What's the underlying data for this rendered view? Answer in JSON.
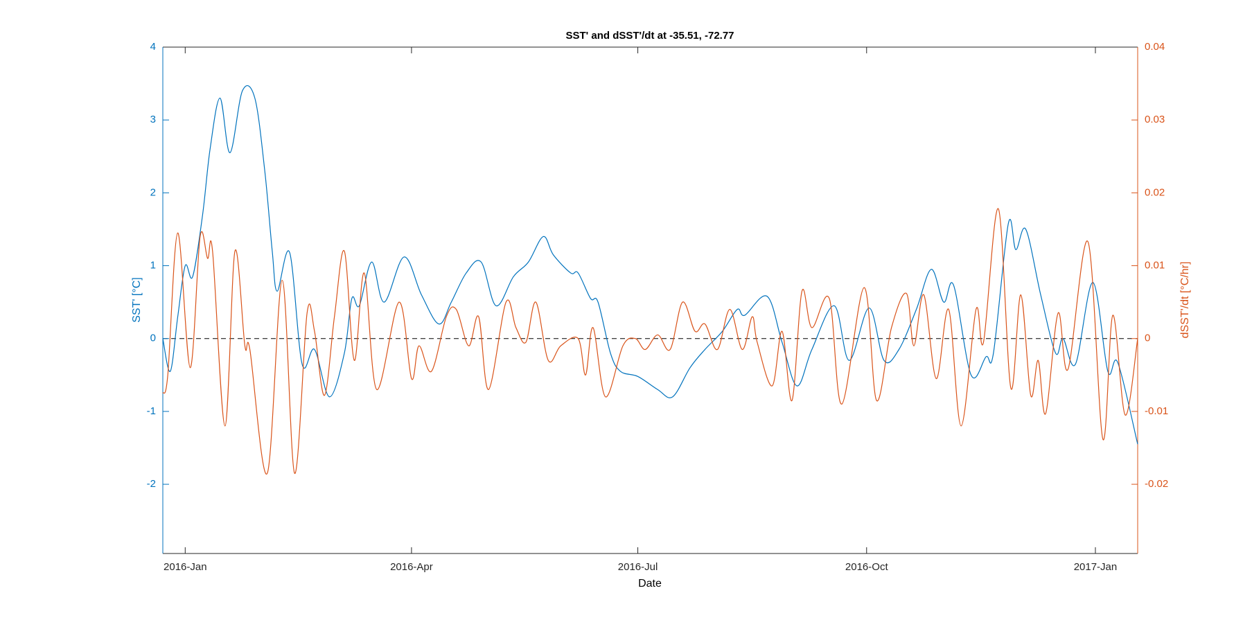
{
  "chart_data": {
    "type": "line",
    "title": "SST' and dSST'/dt at -35.51, -72.77",
    "x_label": "Date",
    "y_label": "SST' [°C]",
    "y2_label": "dSST'/dt [°C/hr]",
    "xlim": [
      -9,
      383
    ],
    "xticks": [
      {
        "value": 0,
        "label": "2016-Jan"
      },
      {
        "value": 91,
        "label": "2016-Apr"
      },
      {
        "value": 182,
        "label": "2016-Jul"
      },
      {
        "value": 274,
        "label": "2016-Oct"
      },
      {
        "value": 366,
        "label": "2017-Jan"
      }
    ],
    "ylim": [
      -2.95,
      4
    ],
    "yticks": [
      -2,
      -1,
      0,
      1,
      2,
      3,
      4
    ],
    "y2lim": [
      -0.0295,
      0.04
    ],
    "y2ticks": [
      -0.02,
      -0.01,
      0,
      0.01,
      0.02,
      0.03,
      0.04
    ],
    "series": [
      {
        "name": "SST'",
        "color": "#0072BD",
        "axis": "y",
        "x": [
          -9,
          -6,
          -3,
          0,
          3,
          7,
          10,
          14,
          18,
          23,
          28,
          32,
          35,
          37,
          42,
          47,
          52,
          58,
          64,
          67,
          70,
          75,
          80,
          88,
          95,
          102,
          107,
          113,
          119,
          125,
          132,
          138,
          144,
          148,
          155,
          158,
          163,
          166,
          171,
          175,
          182,
          190,
          196,
          203,
          209,
          216,
          222,
          225,
          234,
          240,
          246,
          252,
          261,
          267,
          275,
          281,
          287,
          294,
          300,
          305,
          309,
          316,
          322,
          325,
          331,
          334,
          338,
          344,
          350,
          353,
          358,
          365,
          371,
          375,
          383
        ],
        "values": [
          0,
          -0.45,
          0.3,
          1.0,
          0.85,
          1.7,
          2.6,
          3.3,
          2.55,
          3.4,
          3.3,
          2.3,
          1.2,
          0.65,
          1.18,
          -0.35,
          -0.15,
          -0.8,
          -0.2,
          0.55,
          0.45,
          1.05,
          0.5,
          1.12,
          0.6,
          0.2,
          0.5,
          0.9,
          1.05,
          0.45,
          0.85,
          1.05,
          1.4,
          1.15,
          0.9,
          0.9,
          0.55,
          0.5,
          -0.2,
          -0.45,
          -0.52,
          -0.7,
          -0.8,
          -0.4,
          -0.15,
          0.1,
          0.4,
          0.32,
          0.58,
          -0.05,
          -0.65,
          -0.15,
          0.45,
          -0.3,
          0.42,
          -0.3,
          -0.15,
          0.4,
          0.95,
          0.5,
          0.73,
          -0.5,
          -0.25,
          -0.2,
          1.58,
          1.22,
          1.5,
          0.6,
          -0.2,
          0.0,
          -0.35,
          0.77,
          -0.45,
          -0.33,
          -1.45
        ]
      },
      {
        "name": "dSST'/dt",
        "color": "#D95319",
        "axis": "y2",
        "x": [
          -9,
          -7,
          -3,
          2,
          6,
          9,
          11,
          16,
          20,
          24,
          26,
          33,
          39,
          44,
          49,
          52,
          56,
          60,
          64,
          68,
          72,
          77,
          86,
          91,
          94,
          99,
          105,
          109,
          114,
          118,
          122,
          129,
          133,
          137,
          141,
          146,
          151,
          158,
          161,
          164,
          169,
          176,
          181,
          185,
          190,
          195,
          200,
          205,
          209,
          214,
          219,
          224,
          228,
          230,
          236,
          240,
          244,
          248,
          252,
          259,
          264,
          273,
          278,
          284,
          290,
          293,
          297,
          302,
          307,
          312,
          318,
          321,
          327,
          332,
          336,
          340,
          343,
          346,
          351,
          355,
          363,
          369,
          373,
          378,
          383
        ],
        "values": [
          -0.0075,
          -0.005,
          0.0145,
          -0.004,
          0.014,
          0.011,
          0.012,
          -0.012,
          0.012,
          -0.001,
          -0.0015,
          -0.0185,
          0.008,
          -0.0185,
          0.0035,
          0.001,
          -0.0078,
          0.003,
          0.012,
          -0.003,
          0.009,
          -0.007,
          0.005,
          -0.0055,
          -0.001,
          -0.0045,
          0.003,
          0.004,
          -0.001,
          0.003,
          -0.007,
          0.005,
          0.0015,
          -0.0005,
          0.005,
          -0.003,
          -0.001,
          0.0,
          -0.005,
          0.0015,
          -0.008,
          -0.001,
          0.0,
          -0.0015,
          0.0005,
          -0.0015,
          0.005,
          0.001,
          0.002,
          -0.0015,
          0.004,
          -0.0015,
          0.003,
          -0.0005,
          -0.0065,
          0.001,
          -0.0085,
          0.0065,
          0.0015,
          0.0055,
          -0.009,
          0.007,
          -0.0085,
          0.0015,
          0.0062,
          -0.001,
          0.006,
          -0.0055,
          0.004,
          -0.012,
          0.004,
          -0.0005,
          0.0178,
          -0.0068,
          0.006,
          -0.0078,
          -0.003,
          -0.0103,
          0.0035,
          -0.0042,
          0.0133,
          -0.0138,
          0.0032,
          -0.0105,
          0.0
        ]
      }
    ]
  }
}
